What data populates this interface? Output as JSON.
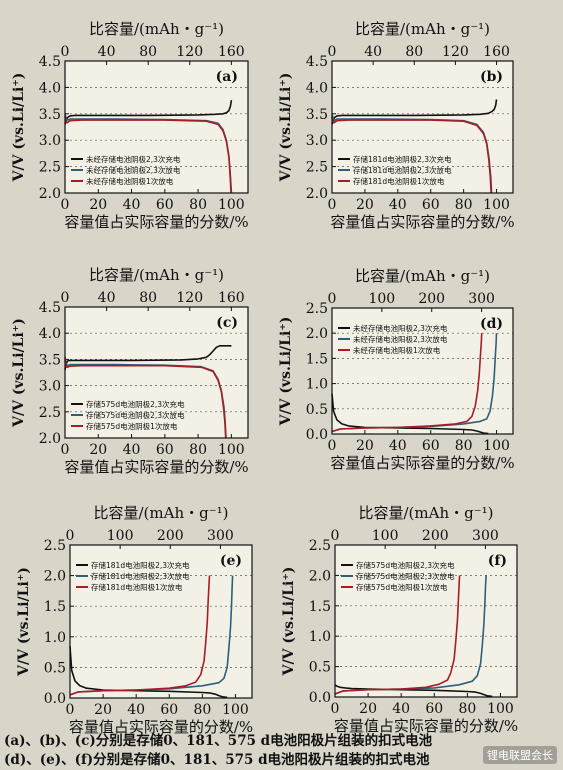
{
  "figure": {
    "caption_line1": "(a)、(b)、(c)分别是存储0、181、575 d电池阳极片组装的扣式电池",
    "caption_line2": "(d)、(e)、(f)分别是存储0、181、575 d电池阳极片组装的扣式电池",
    "watermark": "锂电联盟会长"
  },
  "colors": {
    "background": "#d9d5c9",
    "plot_bg": "#f3f1e6",
    "charge": "#111111",
    "discharge3": "#2e5f7a",
    "discharge1": "#a81c26"
  },
  "chart_data": [
    {
      "panel": "(a)",
      "type": "line",
      "top_label": "比容量/(mAh・g⁻¹)",
      "xlabel": "容量值占实际容量的分数/%",
      "ylabel": "V/V (vs.Li/Li⁺)",
      "xlim": [
        0,
        110
      ],
      "xticks": [
        0,
        20,
        40,
        60,
        80,
        100
      ],
      "top_lim": [
        0,
        176
      ],
      "top_ticks": [
        0,
        40,
        80,
        120,
        160
      ],
      "ylim": [
        2.0,
        4.5
      ],
      "yticks": [
        2.0,
        2.5,
        3.0,
        3.5,
        4.0,
        4.5
      ],
      "grid": "horizontal dotted",
      "legend": "bottom-left",
      "series": [
        {
          "name": "未经存储电池阴极2,3次充电",
          "color": "#111111",
          "x": [
            0,
            0.5,
            1.5,
            3,
            6,
            20,
            50,
            80,
            90,
            95,
            97,
            98.5,
            99.5,
            100
          ],
          "y": [
            3.3,
            3.35,
            3.43,
            3.46,
            3.47,
            3.47,
            3.47,
            3.48,
            3.49,
            3.5,
            3.52,
            3.56,
            3.65,
            3.76
          ]
        },
        {
          "name": "未经存储电池阴极2,3次放电",
          "color": "#2e5f7a",
          "x": [
            0,
            0.4,
            1.2,
            3,
            10,
            30,
            60,
            85,
            92,
            95,
            97,
            98.5,
            99.5,
            100
          ],
          "y": [
            3.5,
            3.44,
            3.38,
            3.4,
            3.4,
            3.4,
            3.39,
            3.37,
            3.32,
            3.2,
            3.0,
            2.7,
            2.3,
            2.0
          ]
        },
        {
          "name": "未经存储电池阴极1次放电",
          "color": "#a81c26",
          "x": [
            0,
            0.4,
            1.2,
            3,
            10,
            30,
            60,
            85,
            92,
            95,
            97,
            98.5,
            99.3,
            99.8
          ],
          "y": [
            3.45,
            3.36,
            3.33,
            3.37,
            3.38,
            3.38,
            3.38,
            3.36,
            3.3,
            3.18,
            2.98,
            2.68,
            2.3,
            2.0
          ]
        }
      ]
    },
    {
      "panel": "(b)",
      "type": "line",
      "top_label": "比容量/(mAh・g⁻¹)",
      "xlabel": "容量值占实际容量的分数/%",
      "ylabel": "V/V (vs.Li/Li⁺)",
      "xlim": [
        0,
        110
      ],
      "xticks": [
        0,
        20,
        40,
        60,
        80,
        100
      ],
      "top_lim": [
        0,
        176
      ],
      "top_ticks": [
        0,
        40,
        80,
        120,
        160
      ],
      "ylim": [
        2.0,
        4.5
      ],
      "yticks": [
        2.0,
        2.5,
        3.0,
        3.5,
        4.0,
        4.5
      ],
      "grid": "horizontal dotted",
      "legend": "bottom-left",
      "series": [
        {
          "name": "存储181d电池阴极2,3次充电",
          "color": "#111111",
          "x": [
            0,
            0.5,
            1.5,
            3,
            6,
            20,
            50,
            80,
            90,
            95,
            97,
            98.5,
            99.5,
            100
          ],
          "y": [
            3.3,
            3.35,
            3.43,
            3.46,
            3.47,
            3.47,
            3.47,
            3.48,
            3.49,
            3.51,
            3.54,
            3.58,
            3.66,
            3.77
          ]
        },
        {
          "name": "存储181d电池阴极2,3次放电",
          "color": "#2e5f7a",
          "x": [
            0,
            0.4,
            1.2,
            3,
            10,
            30,
            60,
            80,
            88,
            92,
            94,
            95.5,
            96.5,
            97
          ],
          "y": [
            3.5,
            3.44,
            3.37,
            3.4,
            3.4,
            3.4,
            3.39,
            3.37,
            3.3,
            3.15,
            2.95,
            2.65,
            2.3,
            2.0
          ]
        },
        {
          "name": "存储181d电池阴极1次放电",
          "color": "#a81c26",
          "x": [
            0,
            0.4,
            1.2,
            3,
            10,
            30,
            60,
            80,
            88,
            92,
            94,
            95.3,
            96.2,
            96.7
          ],
          "y": [
            3.45,
            3.36,
            3.33,
            3.37,
            3.38,
            3.38,
            3.38,
            3.36,
            3.28,
            3.13,
            2.93,
            2.63,
            2.3,
            2.0
          ]
        }
      ]
    },
    {
      "panel": "(c)",
      "type": "line",
      "top_label": "比容量/(mAh・g⁻¹)",
      "xlabel": "容量值占实际容量的分数/%",
      "ylabel": "V/V (vs.Li/Li⁺)",
      "xlim": [
        0,
        110
      ],
      "xticks": [
        0,
        20,
        40,
        60,
        80,
        100
      ],
      "top_lim": [
        0,
        176
      ],
      "top_ticks": [
        0,
        40,
        80,
        120,
        160
      ],
      "ylim": [
        2.0,
        4.5
      ],
      "yticks": [
        2.0,
        2.5,
        3.0,
        3.5,
        4.0,
        4.5
      ],
      "grid": "horizontal dotted",
      "legend": "bottom-left",
      "series": [
        {
          "name": "存储575d电池阴极2,3次充电",
          "color": "#111111",
          "x": [
            0,
            0.5,
            1.5,
            3,
            10,
            40,
            70,
            80,
            85,
            87,
            89,
            91,
            93,
            97,
            100
          ],
          "y": [
            3.3,
            3.4,
            3.47,
            3.48,
            3.48,
            3.48,
            3.49,
            3.51,
            3.54,
            3.59,
            3.66,
            3.73,
            3.76,
            3.76,
            3.76
          ]
        },
        {
          "name": "存储575d电池阴极2,3次放电",
          "color": "#2e5f7a",
          "x": [
            0,
            0.4,
            1.2,
            3,
            10,
            30,
            60,
            82,
            89,
            92,
            94,
            95.5,
            96.3,
            96.8
          ],
          "y": [
            3.55,
            3.45,
            3.38,
            3.4,
            3.4,
            3.4,
            3.39,
            3.36,
            3.28,
            3.12,
            2.9,
            2.6,
            2.3,
            2.0
          ]
        },
        {
          "name": "存储575d电池阴极1次放电",
          "color": "#a81c26",
          "x": [
            0,
            0.4,
            1.2,
            3,
            10,
            30,
            60,
            82,
            89,
            92,
            94,
            95.3,
            96.1,
            96.6
          ],
          "y": [
            3.5,
            3.38,
            3.35,
            3.37,
            3.38,
            3.38,
            3.38,
            3.35,
            3.27,
            3.1,
            2.88,
            2.58,
            2.3,
            2.0
          ]
        }
      ]
    },
    {
      "panel": "(d)",
      "type": "line",
      "top_label": "比容量/(mAh・g⁻¹)",
      "xlabel": "容量值占实际容量的分数/%",
      "ylabel": "V/V (vs.Li/Li⁺)",
      "xlim": [
        0,
        110
      ],
      "xticks": [
        0,
        20,
        40,
        60,
        80,
        100
      ],
      "top_lim": [
        0,
        363
      ],
      "top_ticks": [
        0,
        100,
        200,
        300
      ],
      "ylim": [
        0.0,
        2.5
      ],
      "yticks": [
        0.0,
        0.5,
        1.0,
        1.5,
        2.0,
        2.5
      ],
      "grid": "horizontal dotted",
      "legend": "top-left",
      "series": [
        {
          "name": "未经存储电池阳极2,3次充电",
          "color": "#111111",
          "x": [
            0,
            1,
            3,
            6,
            10,
            20,
            40,
            60,
            80,
            85,
            88,
            90,
            92,
            95
          ],
          "y": [
            0.8,
            0.45,
            0.28,
            0.2,
            0.16,
            0.13,
            0.12,
            0.11,
            0.09,
            0.08,
            0.06,
            0.04,
            0.02,
            0.01
          ]
        },
        {
          "name": "未经存储电池阳极2,3次放电",
          "color": "#2e5f7a",
          "x": [
            0,
            5,
            20,
            40,
            60,
            80,
            90,
            94,
            96,
            97.5,
            98.5,
            99.2,
            99.7,
            100
          ],
          "y": [
            0.05,
            0.1,
            0.12,
            0.13,
            0.15,
            0.2,
            0.25,
            0.3,
            0.45,
            0.75,
            1.1,
            1.5,
            1.8,
            2.0
          ]
        },
        {
          "name": "未经存储电池阳极1次放电",
          "color": "#a81c26",
          "x": [
            0,
            5,
            20,
            40,
            60,
            75,
            82,
            85,
            87,
            88.5,
            89.5,
            90.2,
            90.8,
            91
          ],
          "y": [
            0.05,
            0.1,
            0.12,
            0.13,
            0.16,
            0.2,
            0.25,
            0.35,
            0.55,
            0.85,
            1.2,
            1.55,
            1.85,
            2.0
          ]
        }
      ]
    },
    {
      "panel": "(e)",
      "type": "line",
      "top_label": "比容量/(mAh・g⁻¹)",
      "xlabel": "容量值占实际容量的分数/%",
      "ylabel": "V/V (vs.Li/Li⁺)",
      "xlim": [
        0,
        110
      ],
      "xticks": [
        0,
        20,
        40,
        60,
        80,
        100
      ],
      "top_lim": [
        0,
        363
      ],
      "top_ticks": [
        0,
        100,
        200,
        300
      ],
      "ylim": [
        0.0,
        2.5
      ],
      "yticks": [
        0.0,
        0.5,
        1.0,
        1.5,
        2.0,
        2.5
      ],
      "grid": "horizontal dotted",
      "legend": "top-left",
      "series": [
        {
          "name": "存储181d电池阳极2,3次充电",
          "color": "#111111",
          "x": [
            0,
            1,
            3,
            6,
            10,
            20,
            40,
            60,
            80,
            85,
            88,
            90,
            92,
            95
          ],
          "y": [
            0.85,
            0.45,
            0.28,
            0.2,
            0.16,
            0.13,
            0.12,
            0.11,
            0.09,
            0.08,
            0.06,
            0.04,
            0.02,
            0.01
          ]
        },
        {
          "name": "存储181d电池阳极2,3次放电",
          "color": "#2e5f7a",
          "x": [
            0,
            5,
            20,
            40,
            60,
            80,
            90,
            93,
            95,
            96,
            97,
            97.6,
            98,
            98.3
          ],
          "y": [
            0.05,
            0.1,
            0.12,
            0.13,
            0.15,
            0.2,
            0.25,
            0.32,
            0.5,
            0.8,
            1.15,
            1.5,
            1.8,
            2.0
          ]
        },
        {
          "name": "存储181d电池阳极1次放电",
          "color": "#a81c26",
          "x": [
            0,
            5,
            20,
            40,
            60,
            70,
            76,
            79,
            81,
            82,
            83,
            83.5,
            84,
            84.3
          ],
          "y": [
            0.05,
            0.1,
            0.12,
            0.13,
            0.16,
            0.2,
            0.26,
            0.38,
            0.6,
            0.9,
            1.25,
            1.6,
            1.85,
            2.0
          ]
        }
      ]
    },
    {
      "panel": "(f)",
      "type": "line",
      "top_label": "比容量/(mAh・g⁻¹)",
      "xlabel": "容量值占实际容量的分数/%",
      "ylabel": "V/V (vs.Li/Li⁺)",
      "xlim": [
        0,
        110
      ],
      "xticks": [
        0,
        20,
        40,
        60,
        80,
        100
      ],
      "top_lim": [
        0,
        363
      ],
      "top_ticks": [
        0,
        100,
        200,
        300
      ],
      "ylim": [
        0.0,
        2.5
      ],
      "yticks": [
        0.0,
        0.5,
        1.0,
        1.5,
        2.0,
        2.5
      ],
      "grid": "horizontal dotted",
      "legend": "top-left",
      "series": [
        {
          "name": "存储575d电池阳极2,3次充电",
          "color": "#111111",
          "x": [
            0,
            1,
            3,
            6,
            10,
            20,
            40,
            60,
            80,
            85,
            88,
            90,
            92,
            95
          ],
          "y": [
            0.2,
            0.18,
            0.16,
            0.15,
            0.14,
            0.13,
            0.12,
            0.11,
            0.09,
            0.08,
            0.06,
            0.04,
            0.02,
            0.01
          ]
        },
        {
          "name": "存储575d电池阳极2,3次放电",
          "color": "#2e5f7a",
          "x": [
            0,
            5,
            20,
            40,
            60,
            75,
            83,
            86,
            88,
            89,
            90,
            90.6,
            91,
            91.3
          ],
          "y": [
            0.05,
            0.1,
            0.12,
            0.13,
            0.15,
            0.2,
            0.26,
            0.35,
            0.55,
            0.85,
            1.2,
            1.55,
            1.85,
            2.0
          ]
        },
        {
          "name": "存储575d电池阳极1次放电",
          "color": "#a81c26",
          "x": [
            0,
            5,
            20,
            40,
            55,
            63,
            68,
            70,
            72,
            73,
            74,
            74.6,
            75,
            75.3
          ],
          "y": [
            0.05,
            0.1,
            0.12,
            0.13,
            0.16,
            0.21,
            0.28,
            0.4,
            0.62,
            0.92,
            1.25,
            1.6,
            1.85,
            2.0
          ]
        }
      ]
    }
  ]
}
